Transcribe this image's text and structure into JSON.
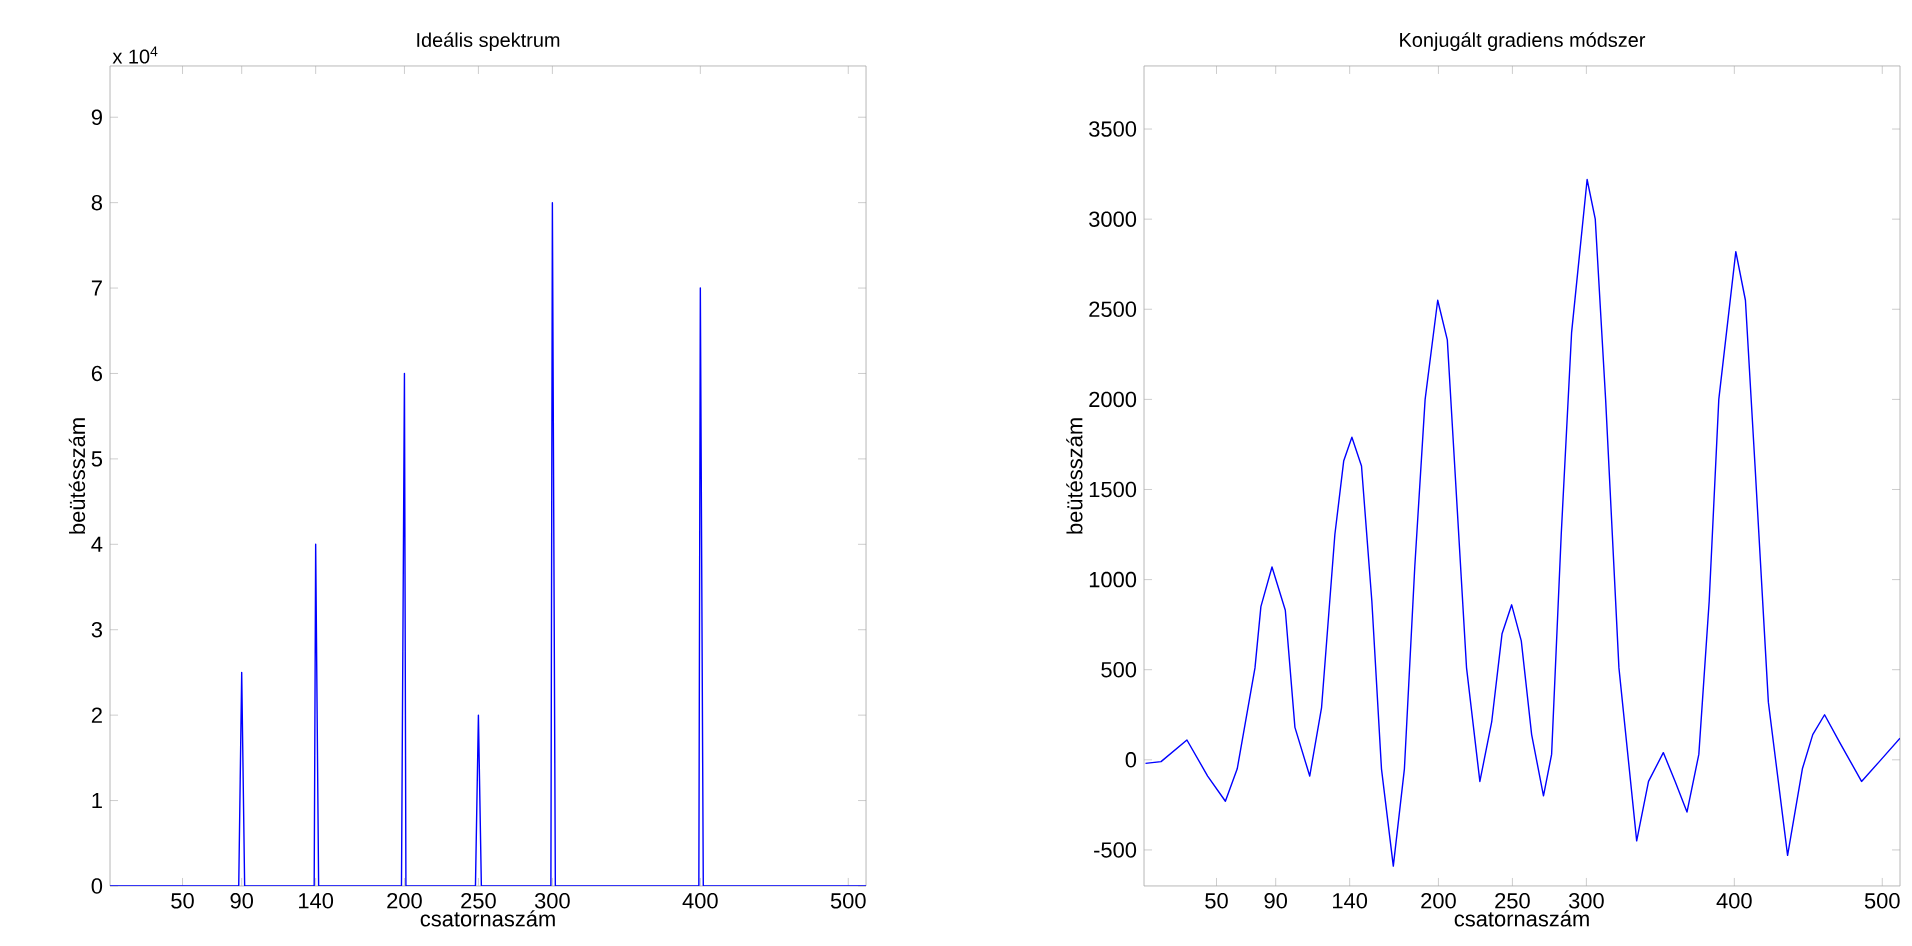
{
  "chart_data": [
    {
      "type": "line",
      "title": "Ideális spektrum",
      "xlabel": "csatornaszám",
      "ylabel": "beütésszám",
      "color": "#0000ff",
      "x": [
        1,
        88,
        89,
        90,
        91,
        92,
        139,
        140,
        141,
        142,
        198,
        199,
        200,
        201,
        248,
        249,
        250,
        251,
        252,
        299,
        300,
        301,
        302,
        399,
        400,
        401,
        402,
        512
      ],
      "values": [
        0,
        0,
        1.25,
        2.5,
        1.25,
        0,
        0,
        4,
        2,
        0,
        0,
        3,
        6,
        0,
        0,
        1,
        2,
        1,
        0,
        0,
        8,
        4,
        0,
        0,
        7,
        3.5,
        0,
        0
      ],
      "xlim": [
        1,
        512
      ],
      "ylim": [
        0,
        9.6
      ],
      "xticks": [
        50,
        90,
        140,
        200,
        250,
        300,
        400,
        500
      ],
      "yticks": [
        0,
        1,
        2,
        3,
        4,
        5,
        6,
        7,
        8,
        9
      ],
      "annotations": [
        "x 10$^{4}$"
      ]
    },
    {
      "type": "line",
      "title": "Konjugált gradiens módszer",
      "xlabel": "csatornaszám",
      "ylabel": "beütésszám",
      "color": "#0000ff",
      "x": [
        2,
        12.5,
        30,
        44,
        56,
        64,
        76,
        80,
        87.5,
        96.5,
        103,
        113,
        121,
        130,
        136,
        141.5,
        148,
        155,
        161.5,
        169.5,
        177,
        184,
        191,
        199.5,
        206,
        211,
        219,
        228,
        236,
        243,
        249.5,
        256,
        263,
        271,
        276.5,
        283,
        290,
        300.5,
        306,
        313,
        322,
        334,
        342,
        352,
        360,
        368,
        376,
        383,
        389.5,
        401,
        407.5,
        414,
        423,
        436,
        446,
        453,
        461,
        471,
        486,
        498,
        512
      ],
      "values": [
        -20,
        -10,
        110,
        -90,
        -230,
        -50,
        510,
        850,
        1070,
        830,
        180,
        -90,
        290,
        1250,
        1660,
        1790,
        1630,
        880,
        -50,
        -590,
        -50,
        1070,
        2000,
        2550,
        2330,
        1630,
        510,
        -120,
        210,
        700,
        860,
        660,
        140,
        -200,
        30,
        1250,
        2370,
        3220,
        3000,
        2000,
        510,
        -450,
        -120,
        40,
        -120,
        -290,
        30,
        880,
        2000,
        2820,
        2550,
        1630,
        320,
        -530,
        -50,
        140,
        250,
        100,
        -120,
        -10,
        120
      ],
      "xlim": [
        1,
        512
      ],
      "ylim": [
        -700,
        3850
      ],
      "xticks": [
        50,
        90,
        140,
        200,
        250,
        300,
        400,
        500
      ],
      "yticks": [
        -500,
        0,
        500,
        1000,
        1500,
        2000,
        2500,
        3000,
        3500
      ]
    }
  ]
}
